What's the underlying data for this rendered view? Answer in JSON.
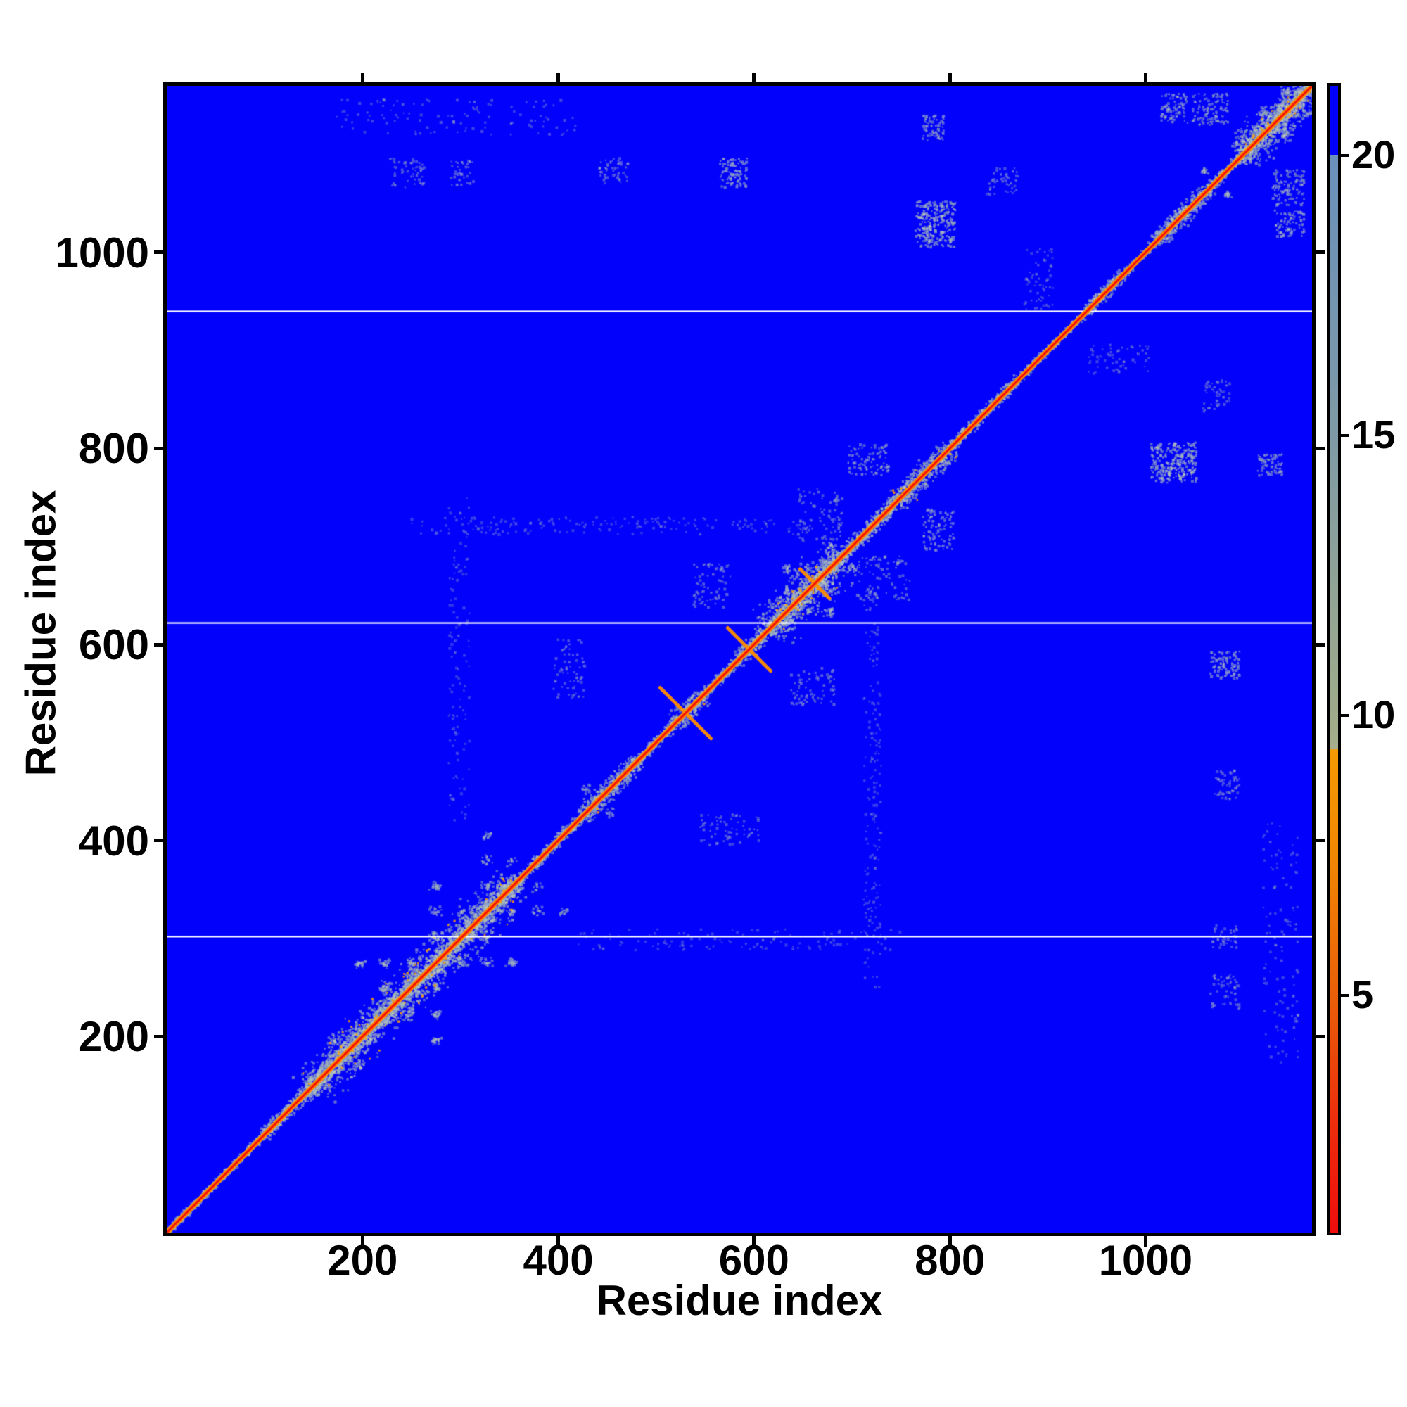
{
  "figure": {
    "background": "#ffffff",
    "description": "Protein residue-residue distance map heatmap with colorbar"
  },
  "chart_data": {
    "type": "heatmap",
    "title": "",
    "xlabel": "Residue index",
    "ylabel": "Residue index",
    "axis_max": 1170,
    "x_range": [
      0,
      1170
    ],
    "y_range": [
      0,
      1170
    ],
    "x_ticks": [
      200,
      400,
      600,
      800,
      1000
    ],
    "y_ticks": [
      200,
      400,
      600,
      800,
      1000
    ],
    "grid": false,
    "legend_position": "none",
    "colorbar": {
      "ticks": [
        5,
        10,
        15,
        20
      ],
      "vmin": 0.77,
      "vmax": 21.24,
      "gradient_stops": [
        {
          "pos": 0.0,
          "color": "#0202fc"
        },
        {
          "pos": 0.0605,
          "color": "#0202fc"
        },
        {
          "pos": 0.0607,
          "color": "#6a90bc"
        },
        {
          "pos": 0.305,
          "color": "#7f9aa6"
        },
        {
          "pos": 0.549,
          "color": "#9fab8a"
        },
        {
          "pos": 0.578,
          "color": "#a6ae8d"
        },
        {
          "pos": 0.579,
          "color": "#f49a02"
        },
        {
          "pos": 0.67,
          "color": "#f18703"
        },
        {
          "pos": 0.794,
          "color": "#e95f09"
        },
        {
          "pos": 0.9,
          "color": "#ec2f0c"
        },
        {
          "pos": 1.0,
          "color": "#ee0d0d"
        }
      ]
    },
    "colors": {
      "background": "#0202fc",
      "diag_core": "#f81400",
      "diag_outer": "#ff8e00",
      "fleck": "#ffa004",
      "break_line": "#ffffff",
      "speckle": [
        "#b9c6b4",
        "#a9bdbd",
        "#9fb6c6",
        "#c6cfb8",
        "#93b2aa"
      ]
    },
    "chain_breaks": [
      302,
      622,
      940
    ],
    "diag_segments": [
      {
        "r": [
          0,
          100
        ],
        "hw": 5,
        "d": 0.55
      },
      {
        "r": [
          100,
          140
        ],
        "hw": 9,
        "d": 0.7
      },
      {
        "r": [
          140,
          360
        ],
        "hw": 13,
        "d": 1.0
      },
      {
        "r": [
          145,
          355
        ],
        "hw": 30,
        "d": 0.55
      },
      {
        "r": [
          360,
          425
        ],
        "hw": 7,
        "d": 0.5
      },
      {
        "r": [
          425,
          482
        ],
        "hw": 13,
        "d": 0.8
      },
      {
        "r": [
          482,
          520
        ],
        "hw": 7,
        "d": 0.5
      },
      {
        "r": [
          520,
          548
        ],
        "hw": 14,
        "d": 0.85
      },
      {
        "r": [
          548,
          585
        ],
        "hw": 7,
        "d": 0.55
      },
      {
        "r": [
          585,
          615
        ],
        "hw": 12,
        "d": 0.8
      },
      {
        "r": [
          615,
          692
        ],
        "hw": 17,
        "d": 0.95
      },
      {
        "r": [
          615,
          690
        ],
        "hw": 34,
        "d": 0.45
      },
      {
        "r": [
          692,
          745
        ],
        "hw": 10,
        "d": 0.7
      },
      {
        "r": [
          745,
          802
        ],
        "hw": 15,
        "d": 0.85
      },
      {
        "r": [
          802,
          870
        ],
        "hw": 7,
        "d": 0.5
      },
      {
        "r": [
          870,
          940
        ],
        "hw": 5,
        "d": 0.45
      },
      {
        "r": [
          940,
          978
        ],
        "hw": 9,
        "d": 0.6
      },
      {
        "r": [
          978,
          1012
        ],
        "hw": 5,
        "d": 0.45
      },
      {
        "r": [
          1012,
          1066
        ],
        "hw": 13,
        "d": 0.8
      },
      {
        "r": [
          1066,
          1096
        ],
        "hw": 7,
        "d": 0.55
      },
      {
        "r": [
          1096,
          1170
        ],
        "hw": 15,
        "d": 0.9
      },
      {
        "r": [
          1100,
          1168
        ],
        "hw": 30,
        "d": 0.5
      }
    ],
    "checkers": [
      {
        "r": [
          145,
          358
        ],
        "spread": 95,
        "step": 26,
        "blob": 8
      },
      {
        "r": [
          428,
          478
        ],
        "spread": 36,
        "step": 24,
        "blob": 7
      },
      {
        "r": [
          612,
          690
        ],
        "spread": 48,
        "step": 22,
        "blob": 7
      },
      {
        "r": [
          745,
          800
        ],
        "spread": 40,
        "step": 20,
        "blob": 6
      },
      {
        "r": [
          1012,
          1064
        ],
        "spread": 30,
        "step": 24,
        "blob": 6
      },
      {
        "r": [
          1098,
          1166
        ],
        "spread": 44,
        "step": 22,
        "blob": 7
      }
    ],
    "clusters": [
      {
        "x": [
          765,
          806
        ],
        "y": [
          1005,
          1052
        ],
        "n": 240,
        "a": 0.6
      },
      {
        "x": [
          772,
          796
        ],
        "y": [
          1114,
          1140
        ],
        "n": 70,
        "a": 0.5
      },
      {
        "x": [
          565,
          593
        ],
        "y": [
          1066,
          1096
        ],
        "n": 90,
        "a": 0.55
      },
      {
        "x": [
          1016,
          1044
        ],
        "y": [
          1132,
          1162
        ],
        "n": 80,
        "a": 0.5
      },
      {
        "x": [
          1048,
          1084
        ],
        "y": [
          1130,
          1162
        ],
        "n": 100,
        "a": 0.5
      },
      {
        "x": [
          538,
          576
        ],
        "y": [
          638,
          682
        ],
        "n": 70,
        "a": 0.45
      },
      {
        "x": [
          696,
          738
        ],
        "y": [
          772,
          804
        ],
        "n": 90,
        "a": 0.5
      },
      {
        "x": [
          645,
          690
        ],
        "y": [
          705,
          760
        ],
        "n": 80,
        "a": 0.45
      },
      {
        "x": [
          836,
          870
        ],
        "y": [
          1058,
          1086
        ],
        "n": 50,
        "a": 0.4
      },
      {
        "x": [
          228,
          264
        ],
        "y": [
          1066,
          1096
        ],
        "n": 55,
        "a": 0.4
      },
      {
        "x": [
          290,
          314
        ],
        "y": [
          1068,
          1094
        ],
        "n": 40,
        "a": 0.4
      },
      {
        "x": [
          442,
          472
        ],
        "y": [
          1070,
          1096
        ],
        "n": 55,
        "a": 0.4
      },
      {
        "x": [
          288,
          310
        ],
        "y": [
          420,
          760
        ],
        "n": 120,
        "a": 0.3
      },
      {
        "x": [
          250,
          690
        ],
        "y": [
          712,
          730
        ],
        "n": 200,
        "a": 0.32
      },
      {
        "x": [
          395,
          428
        ],
        "y": [
          545,
          605
        ],
        "n": 70,
        "a": 0.4
      },
      {
        "x": [
          876,
          906
        ],
        "y": [
          940,
          1004
        ],
        "n": 60,
        "a": 0.35
      },
      {
        "x": [
          1120,
          1156
        ],
        "y": [
          168,
          420
        ],
        "n": 120,
        "a": 0.35
      }
    ],
    "orange_flecks": [
      {
        "r": [
          148,
          356
        ],
        "hw": 30,
        "n": 90
      },
      {
        "r": [
          425,
          480
        ],
        "hw": 12,
        "n": 12
      },
      {
        "r": [
          518,
          545
        ],
        "hw": 10,
        "n": 10
      },
      {
        "r": [
          615,
          690
        ],
        "hw": 20,
        "n": 30
      },
      {
        "r": [
          745,
          800
        ],
        "hw": 16,
        "n": 20
      },
      {
        "r": [
          1098,
          1166
        ],
        "hw": 18,
        "n": 25
      }
    ],
    "x_marks": [
      {
        "c": 530,
        "l": 26
      },
      {
        "c": 595,
        "l": 22
      },
      {
        "c": 662,
        "l": 15
      }
    ]
  }
}
